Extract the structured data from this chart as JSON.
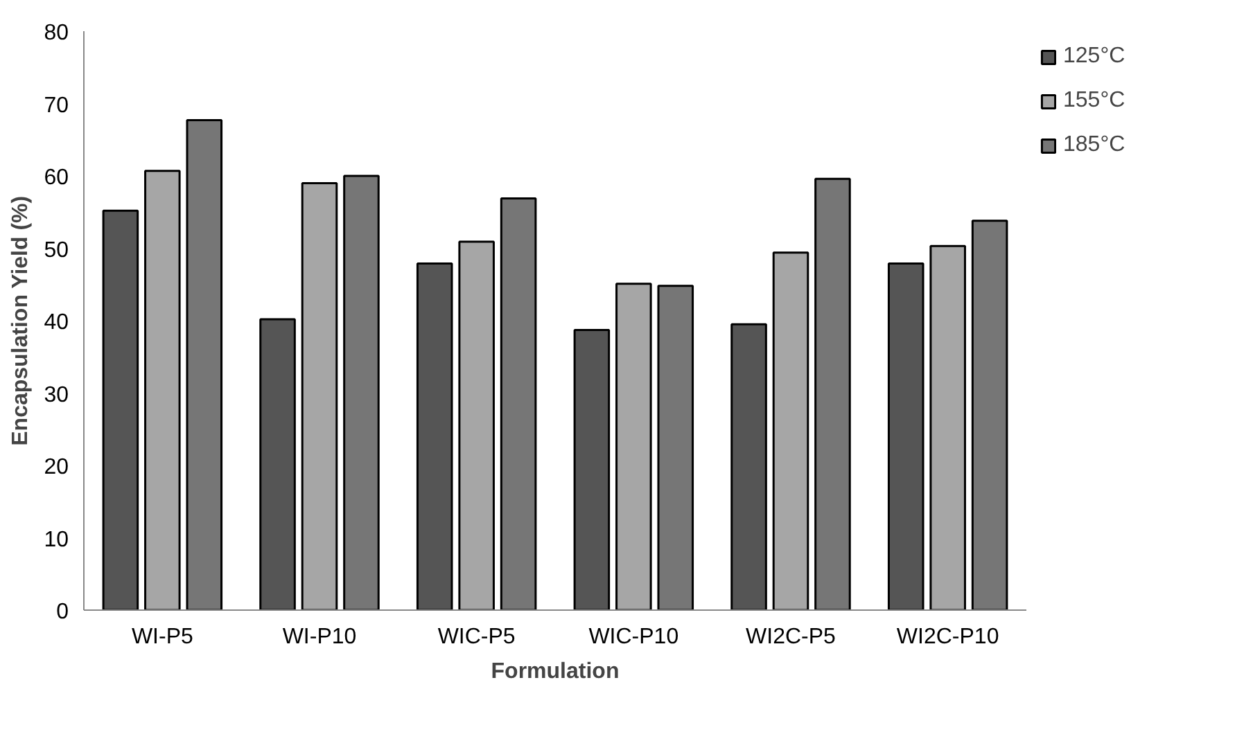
{
  "chart_data": {
    "type": "bar",
    "xlabel": "Formulation",
    "ylabel": "Encapsulation Yield (%)",
    "categories": [
      "WI-P5",
      "WI-P10",
      "WIC-P5",
      "WIC-P10",
      "WI2C-P5",
      "WI2C-P10"
    ],
    "series": [
      {
        "name": "125°C",
        "color": "#555555",
        "values": [
          55.2,
          40.2,
          47.9,
          38.7,
          39.5,
          47.9
        ]
      },
      {
        "name": "155°C",
        "color": "#a6a6a6",
        "values": [
          60.7,
          59.0,
          50.9,
          45.1,
          49.4,
          50.3
        ]
      },
      {
        "name": "185°C",
        "color": "#767676",
        "values": [
          67.7,
          60.0,
          56.9,
          44.8,
          59.6,
          53.8
        ]
      }
    ],
    "ylim": [
      0,
      80
    ],
    "yticks": [
      0,
      10,
      20,
      30,
      40,
      50,
      60,
      70,
      80
    ],
    "grid": false,
    "legend": "right"
  }
}
